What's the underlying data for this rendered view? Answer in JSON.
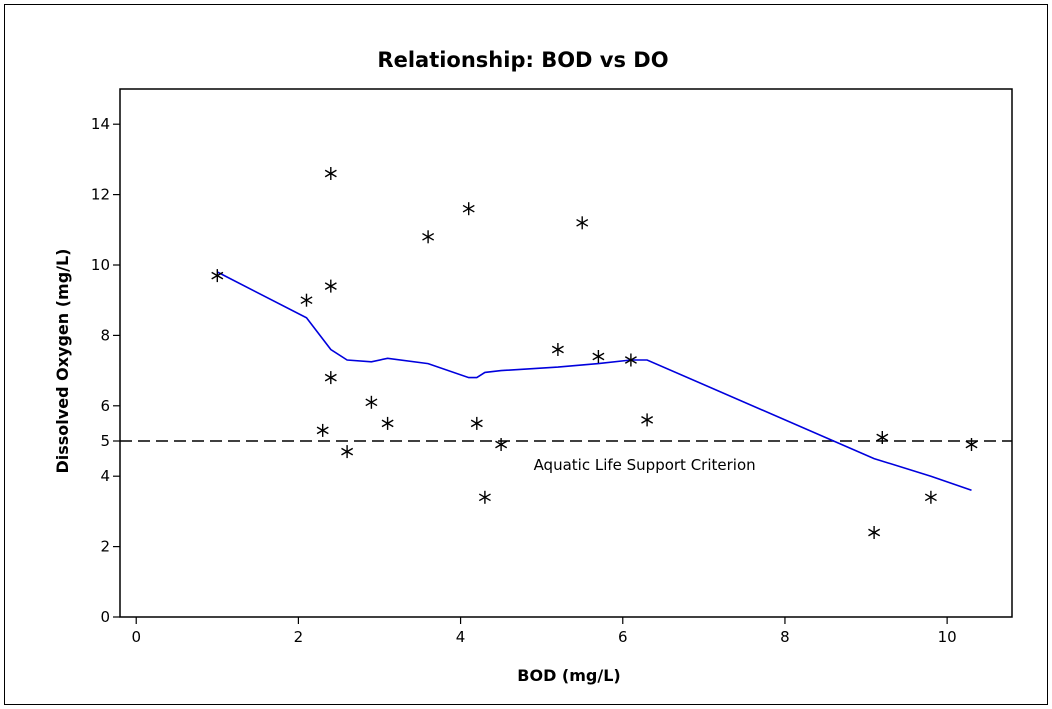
{
  "chart_data": {
    "type": "scatter",
    "title": "Relationship:  BOD vs DO",
    "xlabel": "BOD (mg/L)",
    "ylabel": "Dissolved Oxygen (mg/L)",
    "xlim": [
      -0.2,
      10.8
    ],
    "ylim": [
      0,
      15
    ],
    "x_ticks": [
      {
        "value": 0,
        "label": "0"
      },
      {
        "value": 2,
        "label": "2"
      },
      {
        "value": 4,
        "label": "4"
      },
      {
        "value": 6,
        "label": "6"
      },
      {
        "value": 8,
        "label": "8"
      },
      {
        "value": 10,
        "label": "10"
      }
    ],
    "y_ticks": [
      {
        "value": 0,
        "label": "0"
      },
      {
        "value": 2,
        "label": "2"
      },
      {
        "value": 4,
        "label": "4"
      },
      {
        "value": 5,
        "label": "5"
      },
      {
        "value": 6,
        "label": "6"
      },
      {
        "value": 8,
        "label": "8"
      },
      {
        "value": 10,
        "label": "10"
      },
      {
        "value": 12,
        "label": "12"
      },
      {
        "value": 14,
        "label": "14"
      }
    ],
    "grid": false,
    "legend": "none",
    "marker": "asterisk",
    "points": [
      {
        "x": 1.0,
        "y": 9.7
      },
      {
        "x": 2.1,
        "y": 9.0
      },
      {
        "x": 2.3,
        "y": 5.3
      },
      {
        "x": 2.4,
        "y": 12.6
      },
      {
        "x": 2.4,
        "y": 9.4
      },
      {
        "x": 2.4,
        "y": 6.8
      },
      {
        "x": 2.6,
        "y": 4.7
      },
      {
        "x": 2.9,
        "y": 6.1
      },
      {
        "x": 3.1,
        "y": 5.5
      },
      {
        "x": 3.6,
        "y": 10.8
      },
      {
        "x": 4.1,
        "y": 11.6
      },
      {
        "x": 4.2,
        "y": 5.5
      },
      {
        "x": 4.3,
        "y": 3.4
      },
      {
        "x": 4.5,
        "y": 4.9
      },
      {
        "x": 5.2,
        "y": 7.6
      },
      {
        "x": 5.5,
        "y": 11.2
      },
      {
        "x": 5.7,
        "y": 7.4
      },
      {
        "x": 6.1,
        "y": 7.3
      },
      {
        "x": 6.3,
        "y": 5.6
      },
      {
        "x": 9.1,
        "y": 2.4
      },
      {
        "x": 9.2,
        "y": 5.1
      },
      {
        "x": 9.8,
        "y": 3.4
      },
      {
        "x": 10.3,
        "y": 4.9
      }
    ],
    "smoother": {
      "color": "#0000dd",
      "points": [
        {
          "x": 1.0,
          "y": 9.8
        },
        {
          "x": 2.1,
          "y": 8.5
        },
        {
          "x": 2.4,
          "y": 7.6
        },
        {
          "x": 2.6,
          "y": 7.3
        },
        {
          "x": 2.9,
          "y": 7.25
        },
        {
          "x": 3.1,
          "y": 7.35
        },
        {
          "x": 3.6,
          "y": 7.2
        },
        {
          "x": 4.1,
          "y": 6.8
        },
        {
          "x": 4.2,
          "y": 6.8
        },
        {
          "x": 4.3,
          "y": 6.95
        },
        {
          "x": 4.5,
          "y": 7.0
        },
        {
          "x": 5.2,
          "y": 7.1
        },
        {
          "x": 5.7,
          "y": 7.2
        },
        {
          "x": 6.1,
          "y": 7.3
        },
        {
          "x": 6.3,
          "y": 7.3
        },
        {
          "x": 9.1,
          "y": 4.5
        },
        {
          "x": 9.8,
          "y": 4.0
        },
        {
          "x": 10.3,
          "y": 3.6
        }
      ]
    },
    "reference_line": {
      "y": 5,
      "style": "dashed",
      "color": "#000000",
      "label": "Aquatic Life Support Criterion"
    }
  }
}
